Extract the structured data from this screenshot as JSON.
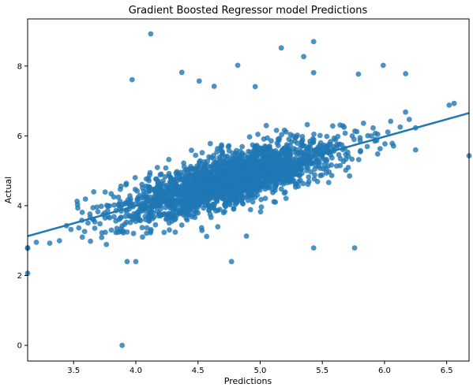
{
  "chart_data": {
    "type": "scatter",
    "title": "Gradient Boosted Regressor model Predictions",
    "xlabel": "Predictions",
    "ylabel": "Actual",
    "xlim": [
      3.13,
      6.68
    ],
    "ylim": [
      -0.45,
      9.35
    ],
    "x_ticks": [
      "3.5",
      "4.0",
      "4.5",
      "5.0",
      "5.5",
      "6.0",
      "6.5"
    ],
    "y_ticks": [
      "0",
      "2",
      "4",
      "6",
      "8"
    ],
    "grid": false,
    "legend": "none",
    "color": "#1f77b4",
    "point_count": 2200,
    "regression_line": {
      "intercept": 0.02,
      "slope": 0.993
    },
    "outliers": [
      {
        "x": 4.12,
        "y": 8.92
      },
      {
        "x": 5.43,
        "y": 8.7
      },
      {
        "x": 5.17,
        "y": 8.52
      },
      {
        "x": 5.35,
        "y": 8.27
      },
      {
        "x": 4.82,
        "y": 8.02
      },
      {
        "x": 5.99,
        "y": 8.02
      },
      {
        "x": 4.37,
        "y": 7.82
      },
      {
        "x": 4.51,
        "y": 7.57
      },
      {
        "x": 6.17,
        "y": 7.78
      },
      {
        "x": 3.97,
        "y": 7.61
      },
      {
        "x": 4.63,
        "y": 7.42
      },
      {
        "x": 4.96,
        "y": 7.41
      },
      {
        "x": 5.43,
        "y": 7.81
      },
      {
        "x": 5.79,
        "y": 7.77
      },
      {
        "x": 3.89,
        "y": 0.0
      },
      {
        "x": 4.77,
        "y": 2.4
      },
      {
        "x": 3.93,
        "y": 2.4
      },
      {
        "x": 4.0,
        "y": 2.4
      },
      {
        "x": 5.43,
        "y": 2.79
      },
      {
        "x": 5.76,
        "y": 2.79
      },
      {
        "x": 3.13,
        "y": 2.78
      },
      {
        "x": 6.68,
        "y": 5.43
      },
      {
        "x": 6.52,
        "y": 6.88
      },
      {
        "x": 6.56,
        "y": 6.93
      },
      {
        "x": 6.25,
        "y": 5.6
      },
      {
        "x": 6.25,
        "y": 6.23
      },
      {
        "x": 4.57,
        "y": 3.12
      },
      {
        "x": 4.89,
        "y": 3.13
      },
      {
        "x": 3.57,
        "y": 3.1
      },
      {
        "x": 3.2,
        "y": 2.95
      }
    ]
  }
}
